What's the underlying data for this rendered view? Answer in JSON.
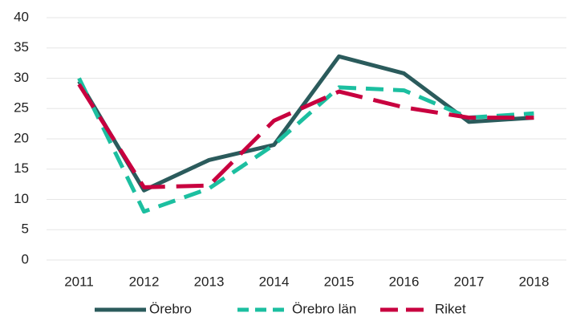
{
  "chart_data": {
    "type": "line",
    "categories": [
      "2011",
      "2012",
      "2013",
      "2014",
      "2015",
      "2016",
      "2017",
      "2018"
    ],
    "series": [
      {
        "name": "Örebro",
        "color": "#2b5b5c",
        "dash": "solid",
        "values": [
          29.5,
          11.5,
          16.5,
          19,
          33.6,
          30.8,
          22.8,
          23.5
        ]
      },
      {
        "name": "Örebro län",
        "color": "#1cbfa0",
        "dash": "dashed",
        "values": [
          30,
          8,
          11.8,
          19,
          28.5,
          28,
          23.5,
          24.2
        ]
      },
      {
        "name": "Riket",
        "color": "#c8003f",
        "dash": "long-dashed",
        "values": [
          29,
          12,
          12.3,
          23,
          27.8,
          25.2,
          23.5,
          23.5
        ]
      }
    ],
    "ylim": [
      0,
      40
    ],
    "yticks": [
      0,
      5,
      10,
      15,
      20,
      25,
      30,
      35,
      40
    ],
    "grid": true,
    "legend": "bottom"
  }
}
